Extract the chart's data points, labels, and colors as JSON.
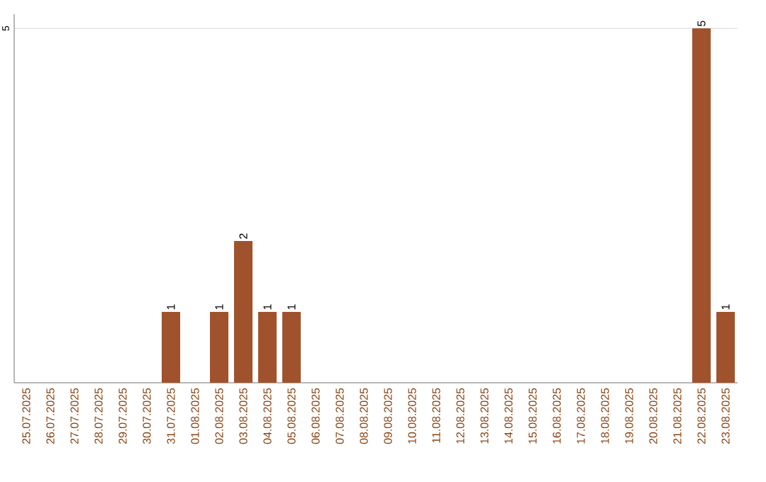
{
  "chart_data": {
    "type": "bar",
    "categories": [
      "25.07.2025",
      "26.07.2025",
      "27.07.2025",
      "28.07.2025",
      "29.07.2025",
      "30.07.2025",
      "31.07.2025",
      "01.08.2025",
      "02.08.2025",
      "03.08.2025",
      "04.08.2025",
      "05.08.2025",
      "06.08.2025",
      "07.08.2025",
      "08.08.2025",
      "09.08.2025",
      "10.08.2025",
      "11.08.2025",
      "12.08.2025",
      "13.08.2025",
      "14.08.2025",
      "15.08.2025",
      "16.08.2025",
      "17.08.2025",
      "18.08.2025",
      "19.08.2025",
      "20.08.2025",
      "21.08.2025",
      "22.08.2025",
      "23.08.2025"
    ],
    "values": [
      0,
      0,
      0,
      0,
      0,
      0,
      1,
      0,
      1,
      2,
      1,
      1,
      0,
      0,
      0,
      0,
      0,
      0,
      0,
      0,
      0,
      0,
      0,
      0,
      0,
      0,
      0,
      0,
      5,
      1
    ],
    "value_labels": [
      null,
      null,
      null,
      null,
      null,
      null,
      "1",
      null,
      "1",
      "2",
      "1",
      "1",
      null,
      null,
      null,
      null,
      null,
      null,
      null,
      null,
      null,
      null,
      null,
      null,
      null,
      null,
      null,
      null,
      "5",
      "1"
    ],
    "color": "#a0522d",
    "ylim": [
      0,
      5.2
    ],
    "yticks": [
      5
    ],
    "grid": "y"
  }
}
